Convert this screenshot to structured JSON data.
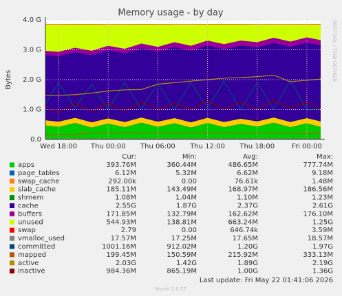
{
  "chart_data": {
    "type": "stacked-area",
    "title": "Memory usage - by day",
    "y_label": "Bytes",
    "side_label": "RRDTOOL / TOBI OETIKER",
    "categories": [
      null,
      "Wed 18:00",
      null,
      null,
      "Thu 00:00",
      null,
      null,
      "Thu 06:00",
      null,
      null,
      "Thu 12:00",
      null,
      null,
      "Thu 18:00",
      null,
      null,
      "Fri 00:00",
      null
    ],
    "ylim": [
      0,
      4000000000
    ],
    "yticks": [
      {
        "value": 0,
        "label": "0.0"
      },
      {
        "value": 1000000000,
        "label": "1.0 G"
      },
      {
        "value": 2000000000,
        "label": "2.0 G"
      },
      {
        "value": 3000000000,
        "label": "3.0 G"
      },
      {
        "value": 4000000000,
        "label": "4.0 G"
      }
    ],
    "grid": true,
    "legend_headers": [
      "Cur:",
      "Min:",
      "Avg:",
      "Max:"
    ],
    "series": [
      {
        "name": "apps",
        "color": "#00cc00",
        "kind": "area",
        "stats": [
          "393.76M",
          "360.44M",
          "486.65M",
          "777.74M"
        ],
        "values": [
          480000000.0,
          420000000.0,
          550000000.0,
          400000000.0,
          530000000.0,
          410000000.0,
          560000000.0,
          420000000.0,
          540000000.0,
          400000000.0,
          550000000.0,
          410000000.0,
          520000000.0,
          430000000.0,
          560000000.0,
          410000000.0,
          540000000.0,
          394000000.0
        ]
      },
      {
        "name": "page_tables",
        "color": "#0066b3",
        "kind": "area",
        "stats": [
          "6.12M",
          "5.32M",
          "6.62M",
          "9.18M"
        ],
        "values": [
          6600000.0,
          6600000.0,
          6600000.0,
          6600000.0,
          6600000.0,
          6600000.0,
          6600000.0,
          6600000.0,
          6600000.0,
          6600000.0,
          6600000.0,
          6600000.0,
          6600000.0,
          6600000.0,
          6600000.0,
          6600000.0,
          6600000.0,
          6120000.0
        ]
      },
      {
        "name": "swap_cache",
        "color": "#ff8000",
        "kind": "area",
        "stats": [
          "292.00k",
          "0.00",
          "76.61k",
          "1.48M"
        ],
        "values": [
          0,
          0,
          0,
          0,
          0,
          0,
          0,
          0,
          0,
          0,
          0,
          0,
          0,
          0,
          0,
          0,
          0,
          292000.0
        ]
      },
      {
        "name": "slab_cache",
        "color": "#ffcc00",
        "kind": "area",
        "stats": [
          "185.11M",
          "143.49M",
          "168.97M",
          "186.56M"
        ],
        "values": [
          170000000.0,
          170000000.0,
          170000000.0,
          170000000.0,
          170000000.0,
          170000000.0,
          170000000.0,
          170000000.0,
          170000000.0,
          170000000.0,
          170000000.0,
          170000000.0,
          170000000.0,
          170000000.0,
          170000000.0,
          170000000.0,
          170000000.0,
          185000000.0
        ]
      },
      {
        "name": "shmem",
        "color": "#008f00",
        "kind": "area",
        "stats": [
          "1.08M",
          "1.04M",
          "1.10M",
          "1.23M"
        ],
        "values": [
          1100000.0,
          1100000.0,
          1100000.0,
          1100000.0,
          1100000.0,
          1100000.0,
          1100000.0,
          1100000.0,
          1100000.0,
          1100000.0,
          1100000.0,
          1100000.0,
          1100000.0,
          1100000.0,
          1100000.0,
          1100000.0,
          1100000.0,
          1080000.0
        ]
      },
      {
        "name": "cache",
        "color": "#330099",
        "kind": "area",
        "stats": [
          "2.55G",
          "1.87G",
          "2.37G",
          "2.61G"
        ],
        "values": [
          2180000000.0,
          2200000000.0,
          2200000000.0,
          2250000000.0,
          2280000000.0,
          2300000000.0,
          2320000000.0,
          2350000000.0,
          2380000000.0,
          2400000000.0,
          2420000000.0,
          2440000000.0,
          2450000000.0,
          2480000000.0,
          2500000000.0,
          2520000000.0,
          2530000000.0,
          2550000000.0
        ]
      },
      {
        "name": "buffers",
        "color": "#990099",
        "kind": "area",
        "stats": [
          "171.85M",
          "132.79M",
          "162.62M",
          "176.10M"
        ],
        "values": [
          140000000.0,
          140000000.0,
          145000000.0,
          145000000.0,
          150000000.0,
          150000000.0,
          155000000.0,
          155000000.0,
          160000000.0,
          160000000.0,
          165000000.0,
          165000000.0,
          165000000.0,
          170000000.0,
          170000000.0,
          170000000.0,
          172000000.0,
          172000000.0
        ]
      },
      {
        "name": "unused",
        "color": "#ccff00",
        "kind": "area",
        "stats": [
          "544.93M",
          "138.81M",
          "663.24M",
          "1.25G"
        ],
        "values": [
          870000000.0,
          910000000.0,
          780000000.0,
          880000000.0,
          710000000.0,
          810000000.0,
          640000000.0,
          750000000.0,
          590000000.0,
          710000000.0,
          540000000.0,
          660000000.0,
          540000000.0,
          590000000.0,
          440000000.0,
          570000000.0,
          430000000.0,
          545000000.0
        ]
      },
      {
        "name": "swap",
        "color": "#ff0000",
        "kind": "area",
        "stats": [
          "2.79",
          "0.00",
          "646.74k",
          "3.59M"
        ],
        "values": [
          0,
          0,
          0,
          0,
          0,
          0,
          0,
          0,
          0,
          0,
          0,
          0,
          0,
          0,
          0,
          0,
          0,
          2.79
        ]
      },
      {
        "name": "vmalloc_used",
        "color": "#808080",
        "kind": "line",
        "stats": [
          "17.57M",
          "17.25M",
          "17.65M",
          "18.57M"
        ],
        "values": [
          17600000.0,
          17600000.0,
          17600000.0,
          17600000.0,
          17600000.0,
          17600000.0,
          17600000.0,
          17600000.0,
          17600000.0,
          17600000.0,
          17600000.0,
          17600000.0,
          17600000.0,
          17600000.0,
          17600000.0,
          17600000.0,
          17600000.0,
          17570000.0
        ]
      },
      {
        "name": "committed",
        "color": "#00487d",
        "kind": "line",
        "stats": [
          "1001.16M",
          "912.02M",
          "1.20G",
          "1.97G"
        ],
        "values": [
          1000000000.0,
          1900000000.0,
          1050000000.0,
          1850000000.0,
          1000000000.0,
          1900000000.0,
          1020000000.0,
          1880000000.0,
          1000000000.0,
          1900000000.0,
          1050000000.0,
          1950000000.0,
          1000000000.0,
          1900000000.0,
          1020000000.0,
          1970000000.0,
          1000000000.0,
          1000000000.0
        ]
      },
      {
        "name": "mapped",
        "color": "#b35a00",
        "kind": "line",
        "stats": [
          "199.45M",
          "150.59M",
          "215.92M",
          "333.13M"
        ],
        "values": [
          160000000.0,
          160000000.0,
          170000000.0,
          220000000.0,
          220000000.0,
          220000000.0,
          220000000.0,
          220000000.0,
          230000000.0,
          230000000.0,
          230000000.0,
          220000000.0,
          220000000.0,
          220000000.0,
          220000000.0,
          220000000.0,
          200000000.0,
          200000000.0
        ]
      },
      {
        "name": "active",
        "color": "#b38f00",
        "kind": "line",
        "stats": [
          "2.03G",
          "1.42G",
          "1.89G",
          "2.19G"
        ],
        "values": [
          1470000000.0,
          1470000000.0,
          1500000000.0,
          1550000000.0,
          1620000000.0,
          1660000000.0,
          1670000000.0,
          1850000000.0,
          1900000000.0,
          1950000000.0,
          2000000000.0,
          2050000000.0,
          2070000000.0,
          2100000000.0,
          2150000000.0,
          1930000000.0,
          1980000000.0,
          2030000000.0
        ]
      },
      {
        "name": "inactive",
        "color": "#8f0000",
        "kind": "line",
        "stats": [
          "984.36M",
          "865.19M",
          "1.00G",
          "1.36G"
        ],
        "values": [
          1150000000.0,
          900000000.0,
          1200000000.0,
          950000000.0,
          1200000000.0,
          950000000.0,
          1250000000.0,
          1000000000.0,
          1200000000.0,
          1000000000.0,
          1300000000.0,
          1000000000.0,
          1250000000.0,
          1000000000.0,
          1300000000.0,
          1050000000.0,
          1250000000.0,
          980000000.0
        ]
      }
    ],
    "last_update": "Last update: Fri May 22 01:41:06 2026",
    "footer": "Munin 2.0.57"
  }
}
